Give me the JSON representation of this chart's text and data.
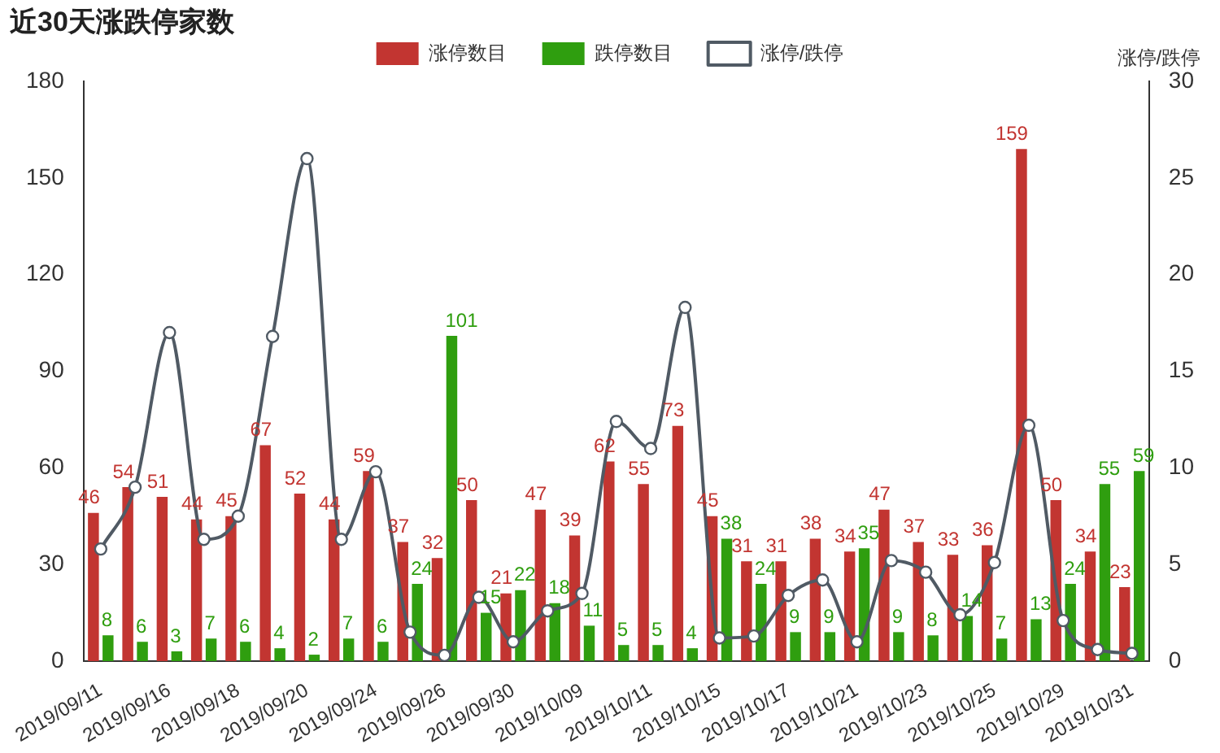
{
  "chart_data": {
    "type": "bar",
    "title": "近30天涨跌停家数",
    "y2label": "涨停/跌停",
    "categories": [
      "2019/09/11",
      null,
      "2019/09/16",
      null,
      "2019/09/18",
      null,
      "2019/09/20",
      null,
      "2019/09/24",
      null,
      "2019/09/26",
      null,
      "2019/09/30",
      null,
      "2019/10/09",
      null,
      "2019/10/11",
      null,
      "2019/10/15",
      null,
      "2019/10/17",
      null,
      "2019/10/21",
      null,
      "2019/10/23",
      null,
      "2019/10/25",
      null,
      "2019/10/29",
      null,
      "2019/10/31"
    ],
    "series": [
      {
        "name": "涨停数目",
        "color": "#c23531",
        "values": [
          46,
          54,
          51,
          44,
          45,
          67,
          52,
          44,
          59,
          37,
          32,
          50,
          21,
          47,
          39,
          62,
          55,
          73,
          45,
          31,
          31,
          38,
          34,
          47,
          37,
          33,
          36,
          159,
          50,
          34,
          23
        ]
      },
      {
        "name": "跌停数目",
        "color": "#2f9e0f",
        "values": [
          8,
          6,
          3,
          7,
          6,
          4,
          2,
          7,
          6,
          24,
          101,
          15,
          22,
          18,
          11,
          5,
          5,
          4,
          38,
          24,
          9,
          9,
          35,
          9,
          8,
          14,
          7,
          13,
          24,
          55,
          59
        ]
      },
      {
        "name": "涨停/跌停",
        "type": "line",
        "axis": "y2",
        "color": "#505a64",
        "marker": "circle",
        "data_labels": false,
        "values": [
          5.8,
          9,
          17,
          6.3,
          7.5,
          16.8,
          26,
          6.3,
          9.8,
          1.5,
          0.3,
          3.3,
          1,
          2.6,
          3.5,
          12.4,
          11,
          18.3,
          1.2,
          1.3,
          3.4,
          4.2,
          1,
          5.2,
          4.6,
          2.4,
          5.1,
          12.2,
          2.1,
          0.6,
          0.4
        ]
      }
    ],
    "ylim": [
      0,
      180
    ],
    "yticks": [
      0,
      30,
      60,
      90,
      120,
      150,
      180
    ],
    "y2lim": [
      0,
      30
    ],
    "y2ticks": [
      0,
      5,
      10,
      15,
      20,
      25,
      30
    ],
    "grid": false,
    "legend": "top",
    "data_labels": true
  }
}
